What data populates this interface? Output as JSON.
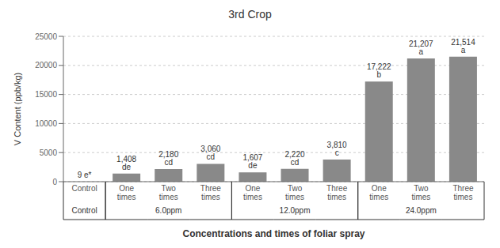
{
  "chart_data": {
    "type": "bar",
    "title": "3rd Crop",
    "xlabel": "Concentrations and times of foliar spray",
    "ylabel": "V Content (ppb/kg)",
    "categories": [
      "Control",
      "One\ntimes",
      "Two\ntimes",
      "Three\ntimes",
      "One\ntimes",
      "Two\ntimes",
      "Three\ntimes",
      "One\ntimes",
      "Two\ntimes",
      "Three\ntimes"
    ],
    "values": [
      9,
      1408,
      2180,
      3060,
      1607,
      2220,
      3810,
      17222,
      21207,
      21514
    ],
    "value_labels": [
      "9 e*",
      "1,408 de",
      "2,180 cd",
      "3,060 cd",
      "1,607 de",
      "2,220 cd",
      "3,810 c",
      "17,222 b",
      "21,207 a",
      "21,514 a"
    ],
    "data_labels": true,
    "color": "#898989",
    "ylim": [
      0,
      25000
    ],
    "yticks": [
      0,
      5000,
      10000,
      15000,
      20000,
      25000
    ],
    "grid": true,
    "group_labels": [
      "Control",
      "6.0ppm",
      "12.0ppm",
      "24.0ppm"
    ],
    "group_sizes": [
      1,
      3,
      3,
      3
    ]
  }
}
